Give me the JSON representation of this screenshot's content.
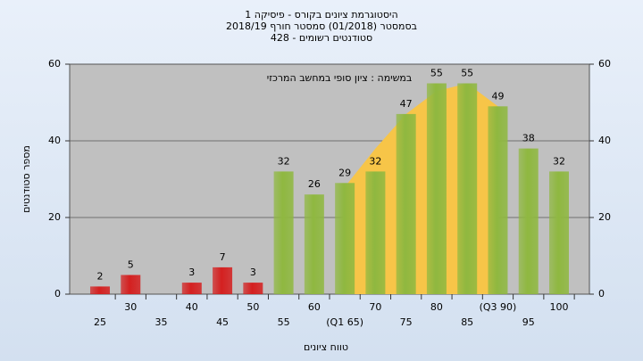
{
  "chart_data": {
    "type": "bar",
    "title": "היסטוגרמת ציונים בקורס - פיסיקה 1",
    "subtitle": [
      "בסמסטר (01/2018) סמסטר חורף 2018/19",
      "סטודנטים רשומים - 428"
    ],
    "annotation": "במשימה : ציון סופי במחשב המרכזי",
    "x_label": "טווח ציונים",
    "y_label": "מספר סטודנטים",
    "categories": [
      "25",
      "30",
      "35",
      "40",
      "45",
      "50",
      "55",
      "60",
      "(Q1 65)",
      "70",
      "75",
      "80",
      "85",
      "(Q3 90)",
      "95",
      "100"
    ],
    "values": [
      2,
      5,
      null,
      3,
      7,
      3,
      32,
      26,
      29,
      32,
      47,
      55,
      55,
      49,
      38,
      32
    ],
    "bar_colors": [
      "#d42020",
      "#d42020",
      "#d42020",
      "#d42020",
      "#d42020",
      "#d42020",
      "#8fb840",
      "#8fb840",
      "#8fb840",
      "#8fb840",
      "#8fb840",
      "#8fb840",
      "#8fb840",
      "#8fb840",
      "#8fb840",
      "#8fb840"
    ],
    "area": {
      "color": "#f7c548",
      "values": [
        null,
        null,
        null,
        null,
        null,
        null,
        null,
        null,
        28,
        38,
        47,
        53,
        55,
        49,
        null,
        null
      ]
    },
    "ylim": [
      0,
      60
    ],
    "yticks": [
      0,
      20,
      40,
      60
    ],
    "y2lim": [
      0,
      60
    ],
    "y2ticks": [
      0,
      20,
      40,
      60
    ],
    "grid": true
  }
}
